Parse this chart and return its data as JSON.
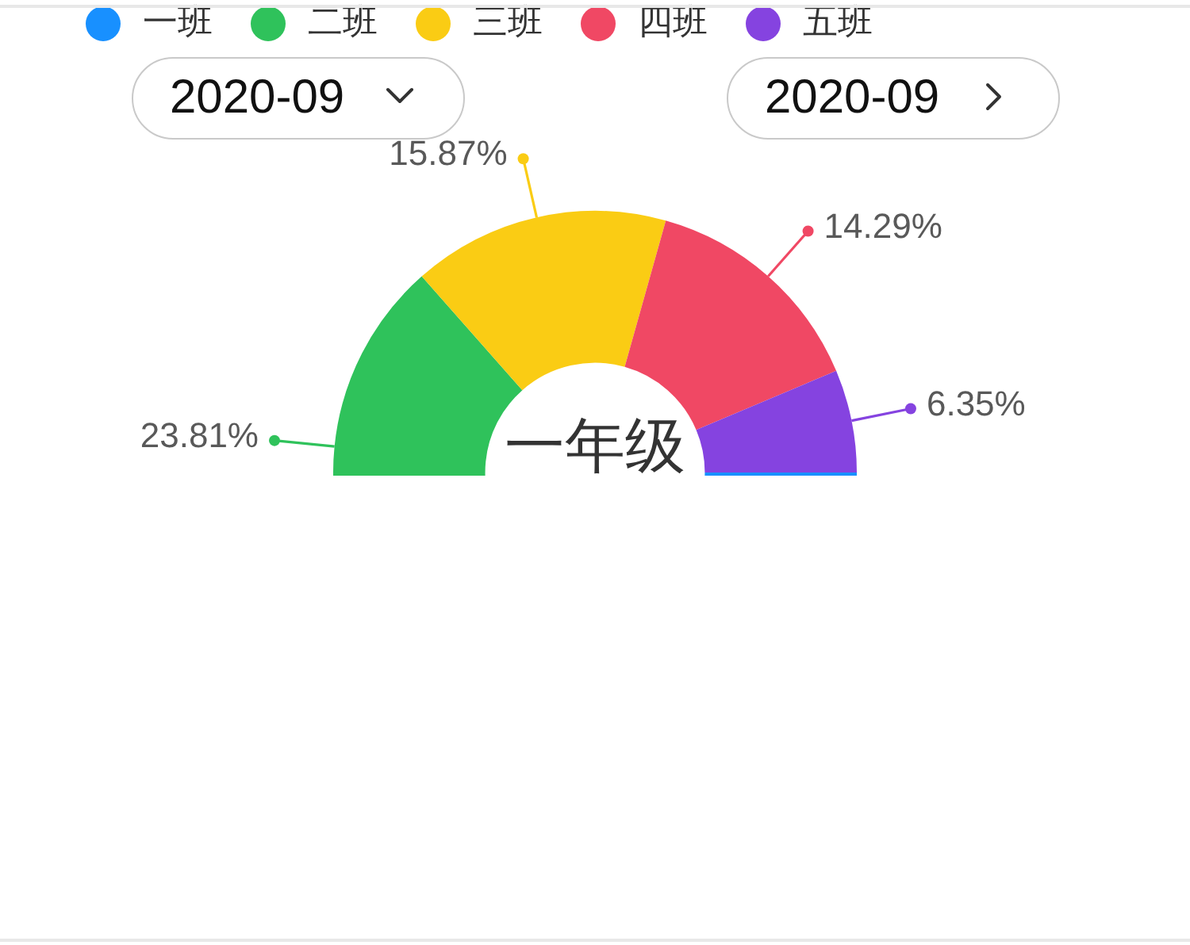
{
  "chart_data": {
    "type": "donut",
    "title": "一年级",
    "categories": [
      "一班",
      "二班",
      "三班",
      "四班",
      "五班"
    ],
    "values": [
      39.68,
      23.81,
      15.87,
      14.29,
      6.35
    ],
    "colors": [
      "#1890ff",
      "#2fc25b",
      "#facc14",
      "#f04864",
      "#8543e0"
    ],
    "value_labels": [
      null,
      "23.81%",
      "15.87%",
      "14.29%",
      "6.35%"
    ],
    "legend": "top left",
    "annotations": [
      "2020-09",
      "2020-09"
    ]
  }
}
